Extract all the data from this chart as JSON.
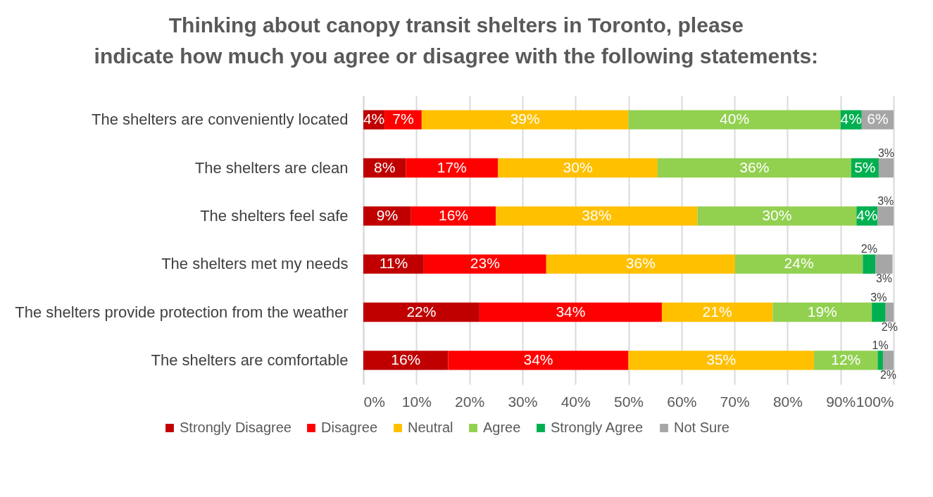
{
  "chart_data": {
    "type": "bar",
    "orientation": "horizontal",
    "stacked": true,
    "title": "Thinking about canopy transit shelters in Toronto, please indicate how much you agree or disagree with the following statements:",
    "categories": [
      "The shelters are conveniently located",
      "The shelters are clean",
      "The shelters feel safe",
      "The shelters met my needs",
      "The shelters provide protection from the weather",
      "The shelters are comfortable"
    ],
    "series": [
      {
        "name": "Strongly Disagree",
        "color": "#c00000",
        "values": [
          4,
          8,
          9,
          11.4,
          21.9,
          16
        ],
        "value_labels": [
          "4%",
          "8%",
          "9%",
          "11%",
          "22%",
          "16%"
        ]
      },
      {
        "name": "Disagree",
        "color": "#ff0000",
        "values": [
          7,
          17.4,
          16,
          23.1,
          34.4,
          34
        ],
        "value_labels": [
          "7%",
          "17%",
          "16%",
          "23%",
          "34%",
          "34%"
        ]
      },
      {
        "name": "Neutral",
        "color": "#ffc000",
        "values": [
          39,
          30.1,
          38,
          35.6,
          20.9,
          35
        ],
        "value_labels": [
          "39%",
          "30%",
          "38%",
          "36%",
          "21%",
          "35%"
        ]
      },
      {
        "name": "Agree",
        "color": "#92d050",
        "values": [
          40,
          36.5,
          30,
          24.1,
          18.7,
          12
        ],
        "value_labels": [
          "40%",
          "36%",
          "30%",
          "24%",
          "19%",
          "12%"
        ]
      },
      {
        "name": "Strongly Agree",
        "color": "#00b050",
        "values": [
          4,
          5.2,
          4,
          2.4,
          2.6,
          1
        ],
        "value_labels": [
          "4%",
          "5%",
          "4%",
          "2%",
          "3%",
          "1%"
        ]
      },
      {
        "name": "Not Sure",
        "color": "#a6a6a6",
        "values": [
          6,
          2.8,
          3,
          3.2,
          1.5,
          2
        ],
        "value_labels": [
          "6%",
          "3%",
          "3%",
          "3%",
          "2%",
          "2%"
        ]
      }
    ],
    "xlim": [
      0,
      100
    ],
    "xticks": [
      {
        "value": 0,
        "label": "0%"
      },
      {
        "value": 10,
        "label": "10%"
      },
      {
        "value": 20,
        "label": "20%"
      },
      {
        "value": 30,
        "label": "30%"
      },
      {
        "value": 40,
        "label": "40%"
      },
      {
        "value": 50,
        "label": "50%"
      },
      {
        "value": 60,
        "label": "60%"
      },
      {
        "value": 70,
        "label": "70%"
      },
      {
        "value": 80,
        "label": "80%"
      },
      {
        "value": 90,
        "label": "90%"
      },
      {
        "value": 100,
        "label": "100%"
      }
    ],
    "grid": "x",
    "legend": "bottom"
  }
}
